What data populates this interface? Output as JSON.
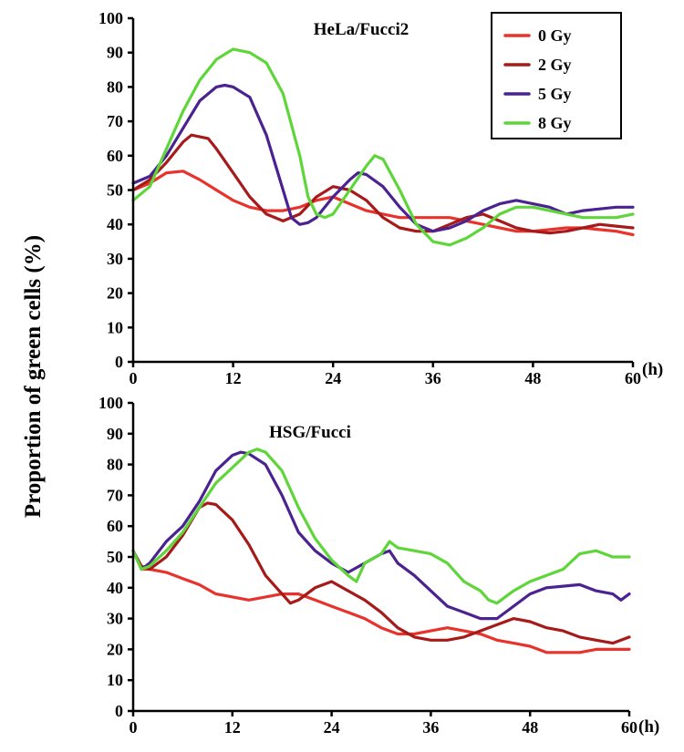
{
  "figure": {
    "ylabel": "Proportion of green cells (%)",
    "x_unit": "(h)"
  },
  "legend_entries": [
    {
      "name": "0 Gy",
      "color": "#e8332c"
    },
    {
      "name": "2 Gy",
      "color": "#a61a1a"
    },
    {
      "name": "5 Gy",
      "color": "#4a2391"
    },
    {
      "name": "8 Gy",
      "color": "#5ed63a"
    }
  ],
  "chart_data": [
    {
      "type": "line",
      "title": "HeLa/Fucci2",
      "xlabel": "(h)",
      "ylabel": "Proportion of green cells (%)",
      "xlim": [
        0,
        60
      ],
      "ylim": [
        0,
        100
      ],
      "xticks": [
        0,
        12,
        24,
        36,
        48,
        60
      ],
      "yticks": [
        0,
        10,
        20,
        30,
        40,
        50,
        60,
        70,
        80,
        90,
        100
      ],
      "grid": false,
      "legend": "top-right",
      "series": [
        {
          "name": "0 Gy",
          "color": "#e8332c",
          "x": [
            0,
            2,
            4,
            6,
            8,
            10,
            12,
            14,
            16,
            18,
            20,
            22,
            24,
            26,
            28,
            30,
            32,
            34,
            36,
            38,
            40,
            42,
            44,
            46,
            48,
            50,
            52,
            54,
            56,
            58,
            60
          ],
          "y": [
            50,
            52,
            55,
            55.5,
            53,
            50,
            47,
            45,
            44,
            44,
            45,
            47,
            48,
            46,
            44,
            43,
            42,
            42,
            42,
            42,
            41,
            40,
            39,
            38,
            38,
            38.5,
            39,
            39,
            38.5,
            38,
            37
          ]
        },
        {
          "name": "2 Gy",
          "color": "#a61a1a",
          "x": [
            0,
            2,
            4,
            6,
            7,
            8,
            9,
            10,
            12,
            14,
            16,
            18,
            20,
            22,
            24,
            26,
            28,
            30,
            32,
            34,
            36,
            38,
            40,
            42,
            44,
            46,
            48,
            50,
            52,
            54,
            56,
            58,
            60
          ],
          "y": [
            50,
            53,
            58,
            64,
            66,
            65.5,
            65,
            62,
            55,
            48,
            43,
            41,
            43,
            48,
            51,
            50,
            47,
            42,
            39,
            38,
            38,
            40,
            42,
            43,
            41,
            39,
            38,
            37.5,
            38,
            39,
            40,
            39.5,
            39
          ]
        },
        {
          "name": "5 Gy",
          "color": "#4a2391",
          "x": [
            0,
            2,
            4,
            6,
            8,
            10,
            11,
            12,
            14,
            16,
            18,
            19,
            20,
            21,
            22,
            24,
            26,
            27,
            28,
            30,
            32,
            34,
            36,
            38,
            40,
            42,
            44,
            46,
            48,
            50,
            52,
            54,
            56,
            58,
            60
          ],
          "y": [
            52,
            54,
            60,
            68,
            76,
            80,
            80.5,
            80,
            77,
            66,
            50,
            42,
            40,
            40.5,
            42,
            48,
            53,
            55,
            54.5,
            51,
            45,
            40,
            38,
            39,
            41,
            44,
            46,
            47,
            46,
            45,
            43,
            44,
            44.5,
            45,
            45
          ]
        },
        {
          "name": "8 Gy",
          "color": "#5ed63a",
          "x": [
            0,
            2,
            4,
            6,
            8,
            10,
            12,
            14,
            16,
            18,
            20,
            21,
            22,
            23,
            24,
            26,
            28,
            29,
            30,
            32,
            34,
            36,
            38,
            40,
            42,
            44,
            46,
            48,
            50,
            52,
            54,
            56,
            58,
            60
          ],
          "y": [
            47,
            51,
            62,
            73,
            82,
            88,
            91,
            90,
            87,
            78,
            60,
            48,
            43,
            42,
            43,
            50,
            57,
            60,
            59,
            50,
            40,
            35,
            34,
            36,
            39,
            43,
            45,
            45,
            44,
            43,
            42,
            42,
            42,
            43
          ]
        }
      ]
    },
    {
      "type": "line",
      "title": "HSG/Fucci",
      "xlabel": "(h)",
      "ylabel": "Proportion of green cells (%)",
      "xlim": [
        0,
        60
      ],
      "ylim": [
        0,
        100
      ],
      "xticks": [
        0,
        12,
        24,
        36,
        48,
        60
      ],
      "yticks": [
        0,
        10,
        20,
        30,
        40,
        50,
        60,
        70,
        80,
        90,
        100
      ],
      "grid": false,
      "legend": "none",
      "series": [
        {
          "name": "0 Gy",
          "color": "#e8332c",
          "x": [
            0,
            1,
            2,
            4,
            6,
            8,
            10,
            12,
            14,
            16,
            18,
            20,
            22,
            24,
            26,
            28,
            30,
            32,
            34,
            36,
            38,
            40,
            42,
            44,
            46,
            48,
            50,
            52,
            54,
            56,
            58,
            60
          ],
          "y": [
            52,
            46,
            46,
            45,
            43,
            41,
            38,
            37,
            36,
            37,
            38,
            38,
            36,
            34,
            32,
            30,
            27,
            25,
            25,
            26,
            27,
            26,
            25,
            23,
            22,
            21,
            19,
            19,
            19,
            20,
            20,
            20
          ]
        },
        {
          "name": "2 Gy",
          "color": "#a61a1a",
          "x": [
            0,
            1,
            2,
            4,
            6,
            8,
            9,
            10,
            12,
            14,
            16,
            18,
            19,
            20,
            22,
            24,
            26,
            28,
            30,
            32,
            34,
            36,
            38,
            40,
            42,
            44,
            46,
            48,
            50,
            52,
            54,
            56,
            58,
            60
          ],
          "y": [
            52,
            47,
            46,
            50,
            57,
            66,
            67.5,
            67,
            62,
            54,
            44,
            38,
            35,
            36,
            40,
            42,
            39,
            36,
            32,
            27,
            24,
            23,
            23,
            24,
            26,
            28,
            30,
            29,
            27,
            26,
            24,
            23,
            22,
            24
          ]
        },
        {
          "name": "5 Gy",
          "color": "#4a2391",
          "x": [
            0,
            1,
            2,
            4,
            6,
            8,
            10,
            12,
            13,
            14,
            16,
            18,
            20,
            22,
            24,
            26,
            28,
            30,
            31,
            32,
            34,
            36,
            38,
            40,
            42,
            44,
            46,
            48,
            50,
            52,
            54,
            56,
            58,
            59,
            60
          ],
          "y": [
            52,
            46,
            48,
            55,
            60,
            68,
            78,
            83,
            84,
            83.5,
            80,
            70,
            58,
            52,
            48,
            45,
            48,
            51,
            52,
            48,
            44,
            39,
            34,
            32,
            30,
            30,
            34,
            38,
            40,
            40.5,
            41,
            39,
            38,
            36,
            38
          ]
        },
        {
          "name": "8 Gy",
          "color": "#5ed63a",
          "x": [
            0,
            1,
            2,
            4,
            6,
            8,
            10,
            12,
            14,
            15,
            16,
            18,
            20,
            22,
            24,
            26,
            27,
            28,
            30,
            31,
            32,
            34,
            36,
            38,
            40,
            42,
            43,
            44,
            46,
            48,
            50,
            52,
            54,
            56,
            58,
            60
          ],
          "y": [
            52,
            46,
            47,
            52,
            58,
            66,
            74,
            79,
            84,
            85,
            84,
            78,
            66,
            56,
            49,
            44,
            42,
            48,
            51,
            55,
            53,
            52,
            51,
            48,
            42,
            39,
            36,
            35,
            39,
            42,
            44,
            46,
            51,
            52,
            50,
            50
          ]
        }
      ]
    }
  ]
}
